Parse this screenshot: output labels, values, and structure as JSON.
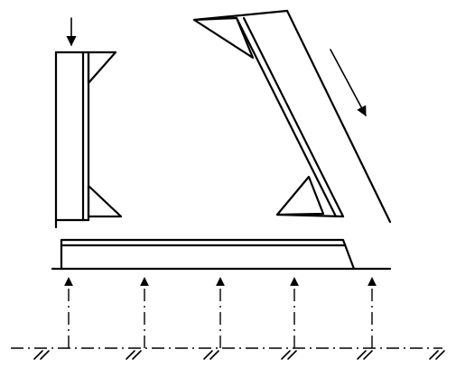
{
  "diagram": {
    "description_elements": [
      "vertical-member",
      "inclined-member",
      "horizontal-base-plate",
      "support-arrows",
      "ground-line"
    ],
    "support_arrow_count": 5,
    "ground_hatch_count": 6
  }
}
